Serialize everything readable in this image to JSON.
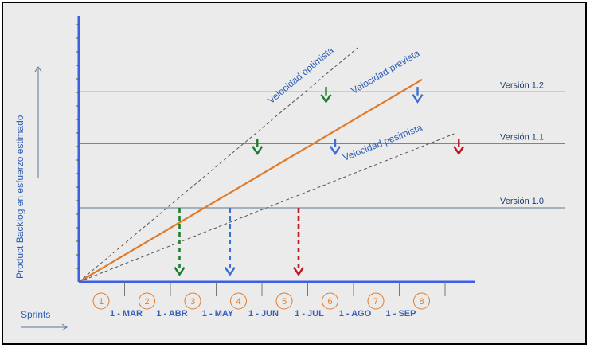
{
  "chart_data": {
    "type": "line",
    "xlabel": "Sprints",
    "ylabel": "Product Backlog en esfuerzo estimado",
    "sprints": [
      1,
      2,
      3,
      4,
      5,
      6,
      7,
      8
    ],
    "months": [
      "1 - MAR",
      "1 - ABR",
      "1 - MAY",
      "1 - JUN",
      "1 - JUL",
      "1 - AGO",
      "1 - SEP"
    ],
    "versions": [
      {
        "label": "Versión 1.0",
        "level": 30
      },
      {
        "label": "Versión 1.1",
        "level": 56
      },
      {
        "label": "Versión 1.2",
        "level": 77
      }
    ],
    "series": [
      {
        "name": "Velocidad optimista",
        "x": [
          0,
          6.1
        ],
        "y": [
          0,
          95
        ],
        "color": "#555555",
        "dash": true
      },
      {
        "name": "Velocidad prevista",
        "x": [
          0,
          7.5
        ],
        "y": [
          0,
          82
        ],
        "color": "#e07b2a",
        "dash": false
      },
      {
        "name": "Velocidad pesimista",
        "x": [
          0,
          8.2
        ],
        "y": [
          0,
          60
        ],
        "color": "#555555",
        "dash": true
      }
    ],
    "arrows": [
      {
        "series": "Velocidad optimista",
        "x": 2.2,
        "from": 30,
        "to": 3,
        "color": "#1e7d2e",
        "dashed": true
      },
      {
        "series": "Velocidad prevista",
        "x": 3.3,
        "from": 30,
        "to": 3,
        "color": "#3b6fd1",
        "dashed": true
      },
      {
        "series": "Velocidad pesimista",
        "x": 4.8,
        "from": 30,
        "to": 3,
        "color": "#c0161d",
        "dashed": true
      },
      {
        "series": "Velocidad optimista",
        "x": 3.9,
        "from": 58,
        "to": 52,
        "color": "#1e7d2e",
        "dashed": false
      },
      {
        "series": "Velocidad prevista",
        "x": 5.6,
        "from": 58,
        "to": 52,
        "color": "#3b6fd1",
        "dashed": false
      },
      {
        "series": "Velocidad pesimista",
        "x": 8.3,
        "from": 58,
        "to": 52,
        "color": "#c0161d",
        "dashed": false
      },
      {
        "series": "Velocidad optimista",
        "x": 5.4,
        "from": 79,
        "to": 73,
        "color": "#1e7d2e",
        "dashed": false
      },
      {
        "series": "Velocidad prevista",
        "x": 7.4,
        "from": 79,
        "to": 73,
        "color": "#3b6fd1",
        "dashed": false
      }
    ]
  },
  "colors": {
    "axis": "#3b5fe6",
    "background": "#ebebeb",
    "version_line": "#5d7a96"
  }
}
